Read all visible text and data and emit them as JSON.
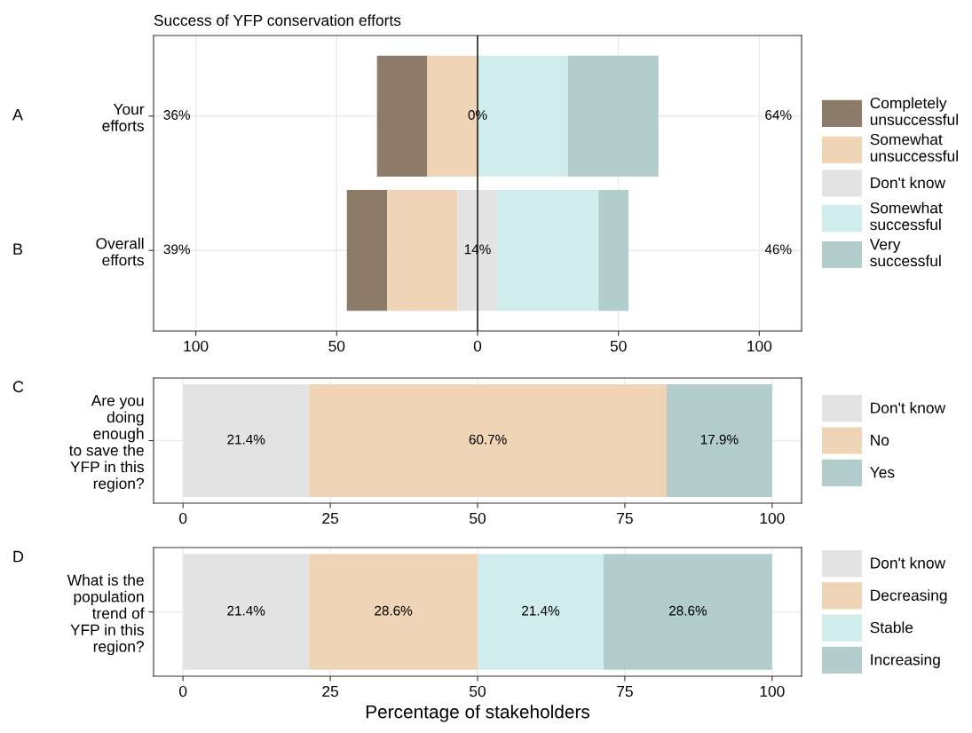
{
  "chart_data": [
    {
      "type": "bar",
      "orientation": "horizontal",
      "title": "Success of YFP conservation efforts",
      "categories": [
        "Your\nefforts",
        "Overall\nefforts"
      ],
      "series": [
        {
          "name": "Completely\nunsuccessful",
          "color": "#8b7b68",
          "values": [
            17.9,
            14.3
          ],
          "base": [
            -35.7,
            -46.4
          ]
        },
        {
          "name": "Somewhat\nunsuccessful",
          "color": "#efd5b5",
          "values": [
            17.9,
            25.0
          ],
          "base": [
            -17.9,
            -32.1
          ]
        },
        {
          "name": "Don't know",
          "color": "#e3e3e3",
          "values": [
            0,
            14.3
          ],
          "base": [
            null,
            -7.1
          ]
        },
        {
          "name": "Somewhat\nsuccessful",
          "color": "#d0ecec",
          "values": [
            32.1,
            35.7
          ],
          "base": [
            0,
            7.1
          ]
        },
        {
          "name": "Very\nsuccessful",
          "color": "#b3cccc",
          "values": [
            32.1,
            10.7
          ],
          "base": [
            32.1,
            42.9
          ]
        }
      ],
      "xlim": [
        -115,
        115
      ],
      "xticks": [
        {
          "value": -100,
          "label": "100"
        },
        {
          "value": -50,
          "label": "50"
        },
        0,
        50,
        100
      ],
      "ref_lines": [
        {
          "axis": "x",
          "value": 0,
          "color": "#000000"
        }
      ],
      "grid": true,
      "legend": "right",
      "annotations": [
        "A",
        "B",
        "36%",
        "0%",
        "64%",
        "39%",
        "14%",
        "46%"
      ]
    },
    {
      "type": "bar",
      "orientation": "horizontal",
      "stacked": true,
      "categories": [
        "Are you\ndoing\nenough\nto save the\nYFP in this\nregion?"
      ],
      "series": [
        {
          "name": "Don't know",
          "color": "#e3e3e3",
          "values": [
            21.4
          ],
          "value_labels": [
            "21.4%"
          ]
        },
        {
          "name": "No",
          "color": "#efd5b5",
          "values": [
            60.7
          ],
          "value_labels": [
            "60.7%"
          ]
        },
        {
          "name": "Yes",
          "color": "#b3cccc",
          "values": [
            17.9
          ],
          "value_labels": [
            "17.9%"
          ]
        }
      ],
      "xlim": [
        -5,
        105
      ],
      "xticks": [
        0,
        25,
        50,
        75,
        100
      ],
      "grid": true,
      "legend": "right",
      "annotations": [
        "C"
      ]
    },
    {
      "type": "bar",
      "orientation": "horizontal",
      "stacked": true,
      "categories": [
        "What is the\npopulation\ntrend of\nYFP in this\nregion?"
      ],
      "series": [
        {
          "name": "Don't know",
          "color": "#e3e3e3",
          "values": [
            21.4
          ],
          "value_labels": [
            "21.4%"
          ]
        },
        {
          "name": "Decreasing",
          "color": "#efd5b5",
          "values": [
            28.6
          ],
          "value_labels": [
            "28.6%"
          ]
        },
        {
          "name": "Stable",
          "color": "#d0ecec",
          "values": [
            21.4
          ],
          "value_labels": [
            "21.4%"
          ]
        },
        {
          "name": "Increasing",
          "color": "#b3cccc",
          "values": [
            28.6
          ],
          "value_labels": [
            "28.6%"
          ]
        }
      ],
      "xlim": [
        -5,
        105
      ],
      "xticks": [
        0,
        25,
        50,
        75,
        100
      ],
      "grid": true,
      "legend": "right",
      "xlabel": "Percentage of stakeholders",
      "annotations": [
        "D"
      ]
    }
  ]
}
